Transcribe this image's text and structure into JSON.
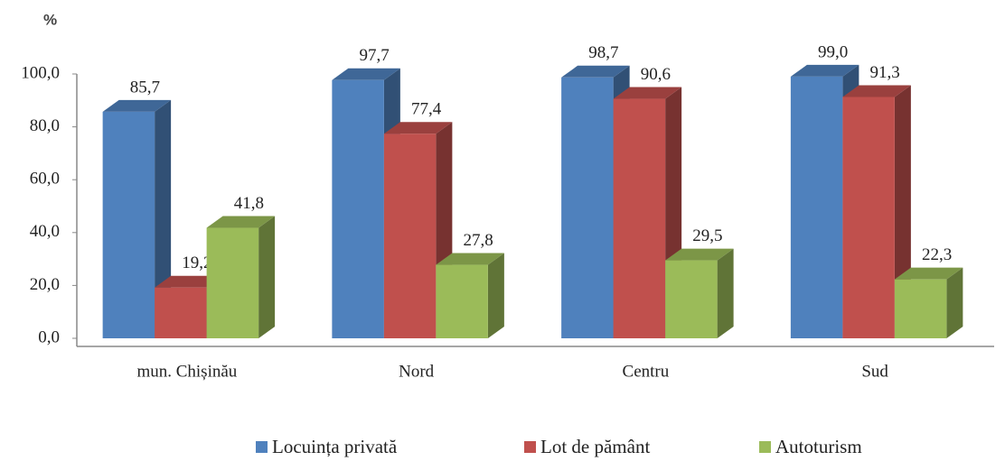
{
  "chart_data": {
    "type": "bar3d",
    "y_label": "%",
    "categories": [
      "mun. Chișinău",
      "Nord",
      "Centru",
      "Sud"
    ],
    "series": [
      {
        "name": "Locuința privată",
        "color": "#4f81bd",
        "values": [
          85.7,
          97.7,
          98.7,
          99.0
        ],
        "value_labels": [
          "85,7",
          "97,7",
          "98,7",
          "99,0"
        ]
      },
      {
        "name": "Lot de pământ",
        "color": "#c0504d",
        "values": [
          19.2,
          77.4,
          90.6,
          91.3
        ],
        "value_labels": [
          "19,2",
          "77,4",
          "90,6",
          "91,3"
        ]
      },
      {
        "name": "Autoturism",
        "color": "#9bbb59",
        "values": [
          41.8,
          27.8,
          29.5,
          22.3
        ],
        "value_labels": [
          "41,8",
          "27,8",
          "29,5",
          "22,3"
        ]
      }
    ],
    "ylim": [
      0,
      100
    ],
    "yticks": [
      {
        "value": 0,
        "label": "0,0"
      },
      {
        "value": 20,
        "label": "20,0"
      },
      {
        "value": 40,
        "label": "40,0"
      },
      {
        "value": 60,
        "label": "60,0"
      },
      {
        "value": 80,
        "label": "80,0"
      },
      {
        "value": 100,
        "label": "100,0"
      }
    ],
    "legend": "bottom"
  }
}
